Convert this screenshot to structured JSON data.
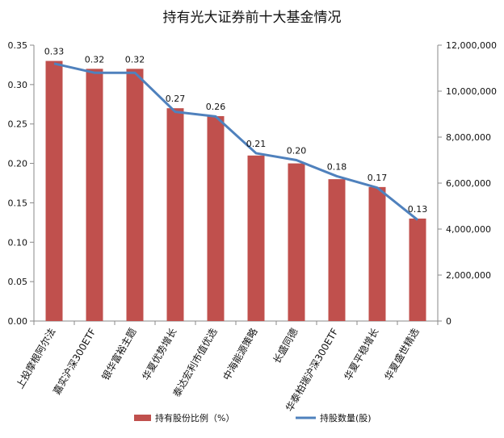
{
  "chart_data": {
    "type": "bar",
    "title": "持有光大证券前十大基金情况",
    "categories": [
      "上投摩根阿尔法",
      "嘉实沪深300ETF",
      "银华富裕主题",
      "华夏优势增长",
      "泰达宏利市值优选",
      "中海能源策略",
      "长盛同德",
      "华泰柏瑞沪深300ETF",
      "华夏平稳增长",
      "华夏盛世精选"
    ],
    "series": [
      {
        "name": "持有股份比例（%）",
        "type": "bar",
        "axis": "left",
        "color": "#c0504d",
        "values": [
          0.33,
          0.32,
          0.32,
          0.27,
          0.26,
          0.21,
          0.2,
          0.18,
          0.17,
          0.13
        ],
        "labels": [
          "0.33",
          "0.32",
          "0.32",
          "0.27",
          "0.26",
          "0.21",
          "0.20",
          "0.18",
          "0.17",
          "0.13"
        ]
      },
      {
        "name": "持股数量(股)",
        "type": "line",
        "axis": "right",
        "color": "#4f81bd",
        "values": [
          11200000,
          10800000,
          10800000,
          9100000,
          8900000,
          7300000,
          7000000,
          6300000,
          5800000,
          4400000
        ]
      }
    ],
    "y_left": {
      "lim": [
        0,
        0.35
      ],
      "ticks": [
        "0.00",
        "0.05",
        "0.10",
        "0.15",
        "0.20",
        "0.25",
        "0.30",
        "0.35"
      ]
    },
    "y_right": {
      "lim": [
        0,
        12000000
      ],
      "ticks": [
        "0",
        "2,000,000",
        "4,000,000",
        "6,000,000",
        "8,000,000",
        "10,000,000",
        "12,000,000"
      ]
    },
    "grid": false,
    "legend": "bottom"
  }
}
